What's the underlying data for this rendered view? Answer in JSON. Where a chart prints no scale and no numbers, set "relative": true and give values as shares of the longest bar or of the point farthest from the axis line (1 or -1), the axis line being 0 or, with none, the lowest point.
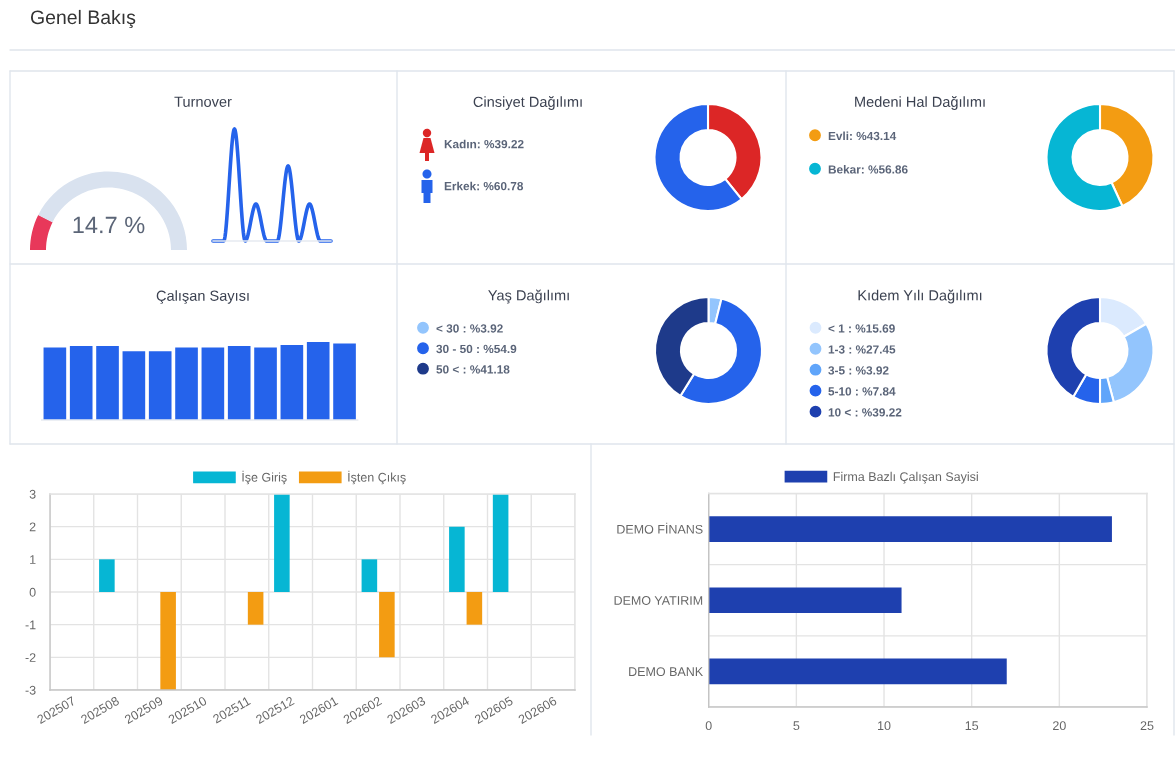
{
  "chart_data": [
    {
      "type": "other",
      "title": "Genel Bakış"
    },
    {
      "type": "donut",
      "title": "Turnover",
      "categories": [
        null,
        null
      ],
      "values": [
        14.7,
        85.3
      ],
      "colors": [
        "#e8385a",
        "#d9e2ef"
      ],
      "annotations": [
        "14.7 %"
      ]
    },
    {
      "type": "line",
      "relative": true,
      "categories": [
        null,
        null,
        null,
        null,
        null,
        null,
        null,
        null,
        null,
        null,
        null,
        null
      ],
      "values": [
        0,
        0,
        1,
        0,
        0.33,
        0,
        0,
        0.67,
        0,
        0.33,
        0,
        0
      ],
      "color": "#2563eb"
    },
    {
      "type": "donut",
      "title": "Cinsiyet Dağılımı",
      "categories": [
        "Kadın",
        "Erkek"
      ],
      "values": [
        39.22,
        60.78
      ],
      "value_labels": [
        "%39.22",
        "%60.78"
      ],
      "colors": [
        "#dc2626",
        "#2563eb"
      ],
      "legend": "left"
    },
    {
      "type": "donut",
      "title": "Medeni Hal Dağılımı",
      "categories": [
        "Evli",
        "Bekar"
      ],
      "values": [
        43.14,
        56.86
      ],
      "value_labels": [
        "%43.14",
        "%56.86"
      ],
      "colors": [
        "#f39c12",
        "#06b6d4"
      ],
      "legend": "left",
      "marker": "circle"
    },
    {
      "type": "bar",
      "title": "Çalışan Sayısı",
      "relative": true,
      "categories": [
        null,
        null,
        null,
        null,
        null,
        null,
        null,
        null,
        null,
        null,
        null,
        null
      ],
      "values": [
        0.93,
        0.95,
        0.95,
        0.88,
        0.88,
        0.93,
        0.93,
        0.95,
        0.93,
        0.96,
        1,
        0.98
      ],
      "color": "#2563eb"
    },
    {
      "type": "donut",
      "title": "Yaş Dağılımı",
      "categories": [
        "< 30",
        "30 - 50",
        "50 <"
      ],
      "values": [
        3.92,
        54.9,
        41.18
      ],
      "value_labels": [
        "%3.92",
        "%54.9",
        "%41.18"
      ],
      "colors": [
        "#93c5fd",
        "#2563eb",
        "#1e3a8a"
      ],
      "legend": "left",
      "marker": "circle"
    },
    {
      "type": "donut",
      "title": "Kıdem Yılı Dağılımı",
      "categories": [
        "< 1",
        "1-3",
        "3-5",
        "5-10",
        "10 <"
      ],
      "values": [
        15.69,
        27.45,
        3.92,
        7.84,
        39.22
      ],
      "value_labels": [
        "%15.69",
        "%27.45",
        "%3.92",
        "%7.84",
        "%39.22"
      ],
      "colors": [
        "#dbeafe",
        "#93c5fd",
        "#60a5fa",
        "#2563eb",
        "#1e40af"
      ],
      "legend": "left",
      "marker": "circle"
    },
    {
      "type": "bar",
      "categories": [
        "202507",
        "202508",
        "202509",
        "202510",
        "202511",
        "202512",
        "202601",
        "202602",
        "202603",
        "202604",
        "202605",
        "202606"
      ],
      "series": [
        {
          "name": "İşe Giriş",
          "color": "#06b6d4",
          "values": [
            0,
            1,
            0,
            0,
            0,
            3,
            0,
            1,
            0,
            2,
            3,
            0
          ]
        },
        {
          "name": "İşten Çıkış",
          "color": "#f39c12",
          "values": [
            0,
            0,
            -3,
            0,
            -1,
            0,
            0,
            -2,
            0,
            -1,
            0,
            0
          ]
        }
      ],
      "ylim": [
        -3,
        3
      ],
      "yticks": [
        -3,
        -2,
        -1,
        0,
        1,
        2,
        3
      ],
      "grid": true,
      "legend": "top"
    },
    {
      "type": "bar",
      "orientation": "horizontal",
      "categories": [
        "DEMO FİNANS",
        "DEMO YATIRIM",
        "DEMO BANK"
      ],
      "series": [
        {
          "name": "Firma Bazlı Çalışan Sayisi",
          "color": "#1e40af",
          "values": [
            23,
            11,
            17
          ]
        }
      ],
      "xlim": [
        0,
        25
      ],
      "xticks": [
        0,
        5,
        10,
        15,
        20,
        25
      ],
      "grid": true,
      "legend": "top"
    }
  ]
}
